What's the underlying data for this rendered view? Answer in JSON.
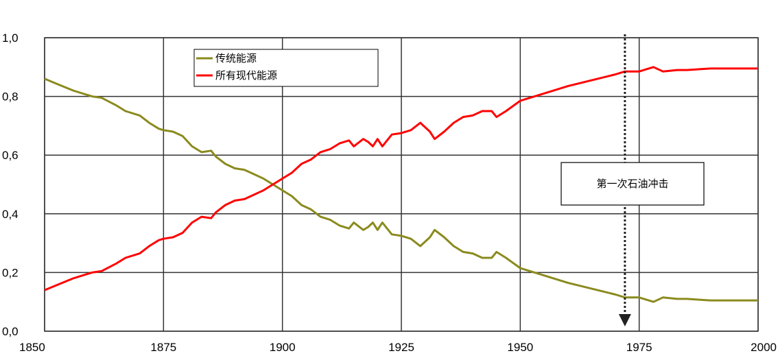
{
  "chart_data": {
    "type": "line",
    "title": "",
    "xlabel": "",
    "ylabel": "",
    "xlim": [
      1850,
      2000
    ],
    "ylim": [
      0,
      1
    ],
    "grid": true,
    "legend_position": "top-center",
    "x_tick_labels": [
      "1850",
      "1875",
      "1900",
      "1925",
      "1950",
      "1975",
      "2000"
    ],
    "y_tick_labels": [
      "0,0",
      "0,2",
      "0,4",
      "0,6",
      "0,8",
      "1,0"
    ],
    "series": [
      {
        "name": "传统能源",
        "color": "#8a8a1e",
        "x": [
          1850,
          1853,
          1856,
          1860,
          1862,
          1865,
          1867,
          1870,
          1872,
          1874,
          1875,
          1877,
          1879,
          1881,
          1883,
          1885,
          1886,
          1888,
          1890,
          1892,
          1894,
          1896,
          1898,
          1900,
          1902,
          1904,
          1906,
          1908,
          1910,
          1912,
          1914,
          1915,
          1917,
          1918,
          1919,
          1920,
          1921,
          1923,
          1925,
          1927,
          1929,
          1931,
          1932,
          1934,
          1936,
          1938,
          1940,
          1942,
          1944,
          1945,
          1947,
          1950,
          1955,
          1960,
          1965,
          1970,
          1972,
          1975,
          1978,
          1980,
          1983,
          1985,
          1990,
          1995,
          2000
        ],
        "y": [
          0.86,
          0.84,
          0.82,
          0.8,
          0.795,
          0.77,
          0.75,
          0.735,
          0.71,
          0.69,
          0.685,
          0.68,
          0.665,
          0.63,
          0.61,
          0.615,
          0.595,
          0.57,
          0.555,
          0.55,
          0.535,
          0.52,
          0.5,
          0.48,
          0.46,
          0.43,
          0.415,
          0.39,
          0.38,
          0.36,
          0.35,
          0.37,
          0.345,
          0.355,
          0.37,
          0.345,
          0.37,
          0.33,
          0.325,
          0.315,
          0.29,
          0.32,
          0.345,
          0.32,
          0.29,
          0.27,
          0.265,
          0.25,
          0.25,
          0.27,
          0.25,
          0.215,
          0.19,
          0.165,
          0.145,
          0.125,
          0.115,
          0.115,
          0.1,
          0.115,
          0.11,
          0.11,
          0.105,
          0.105,
          0.105
        ]
      },
      {
        "name": "所有现代能源",
        "color": "#ff0000",
        "x": [
          1850,
          1853,
          1856,
          1860,
          1862,
          1865,
          1867,
          1870,
          1872,
          1874,
          1875,
          1877,
          1879,
          1881,
          1883,
          1885,
          1886,
          1888,
          1890,
          1892,
          1894,
          1896,
          1898,
          1900,
          1902,
          1904,
          1906,
          1908,
          1910,
          1912,
          1914,
          1915,
          1917,
          1918,
          1919,
          1920,
          1921,
          1923,
          1925,
          1927,
          1929,
          1931,
          1932,
          1934,
          1936,
          1938,
          1940,
          1942,
          1944,
          1945,
          1947,
          1950,
          1955,
          1960,
          1965,
          1970,
          1972,
          1975,
          1978,
          1980,
          1983,
          1985,
          1990,
          1995,
          2000
        ],
        "y": [
          0.14,
          0.16,
          0.18,
          0.2,
          0.205,
          0.23,
          0.25,
          0.265,
          0.29,
          0.31,
          0.315,
          0.32,
          0.335,
          0.37,
          0.39,
          0.385,
          0.405,
          0.43,
          0.445,
          0.45,
          0.465,
          0.48,
          0.5,
          0.52,
          0.54,
          0.57,
          0.585,
          0.61,
          0.62,
          0.64,
          0.65,
          0.63,
          0.655,
          0.645,
          0.63,
          0.655,
          0.63,
          0.67,
          0.675,
          0.685,
          0.71,
          0.68,
          0.655,
          0.68,
          0.71,
          0.73,
          0.735,
          0.75,
          0.75,
          0.73,
          0.75,
          0.785,
          0.81,
          0.835,
          0.855,
          0.875,
          0.885,
          0.885,
          0.9,
          0.885,
          0.89,
          0.89,
          0.895,
          0.895,
          0.895
        ]
      }
    ],
    "annotation": {
      "text": "第一次石油冲击",
      "x": 1972
    }
  }
}
